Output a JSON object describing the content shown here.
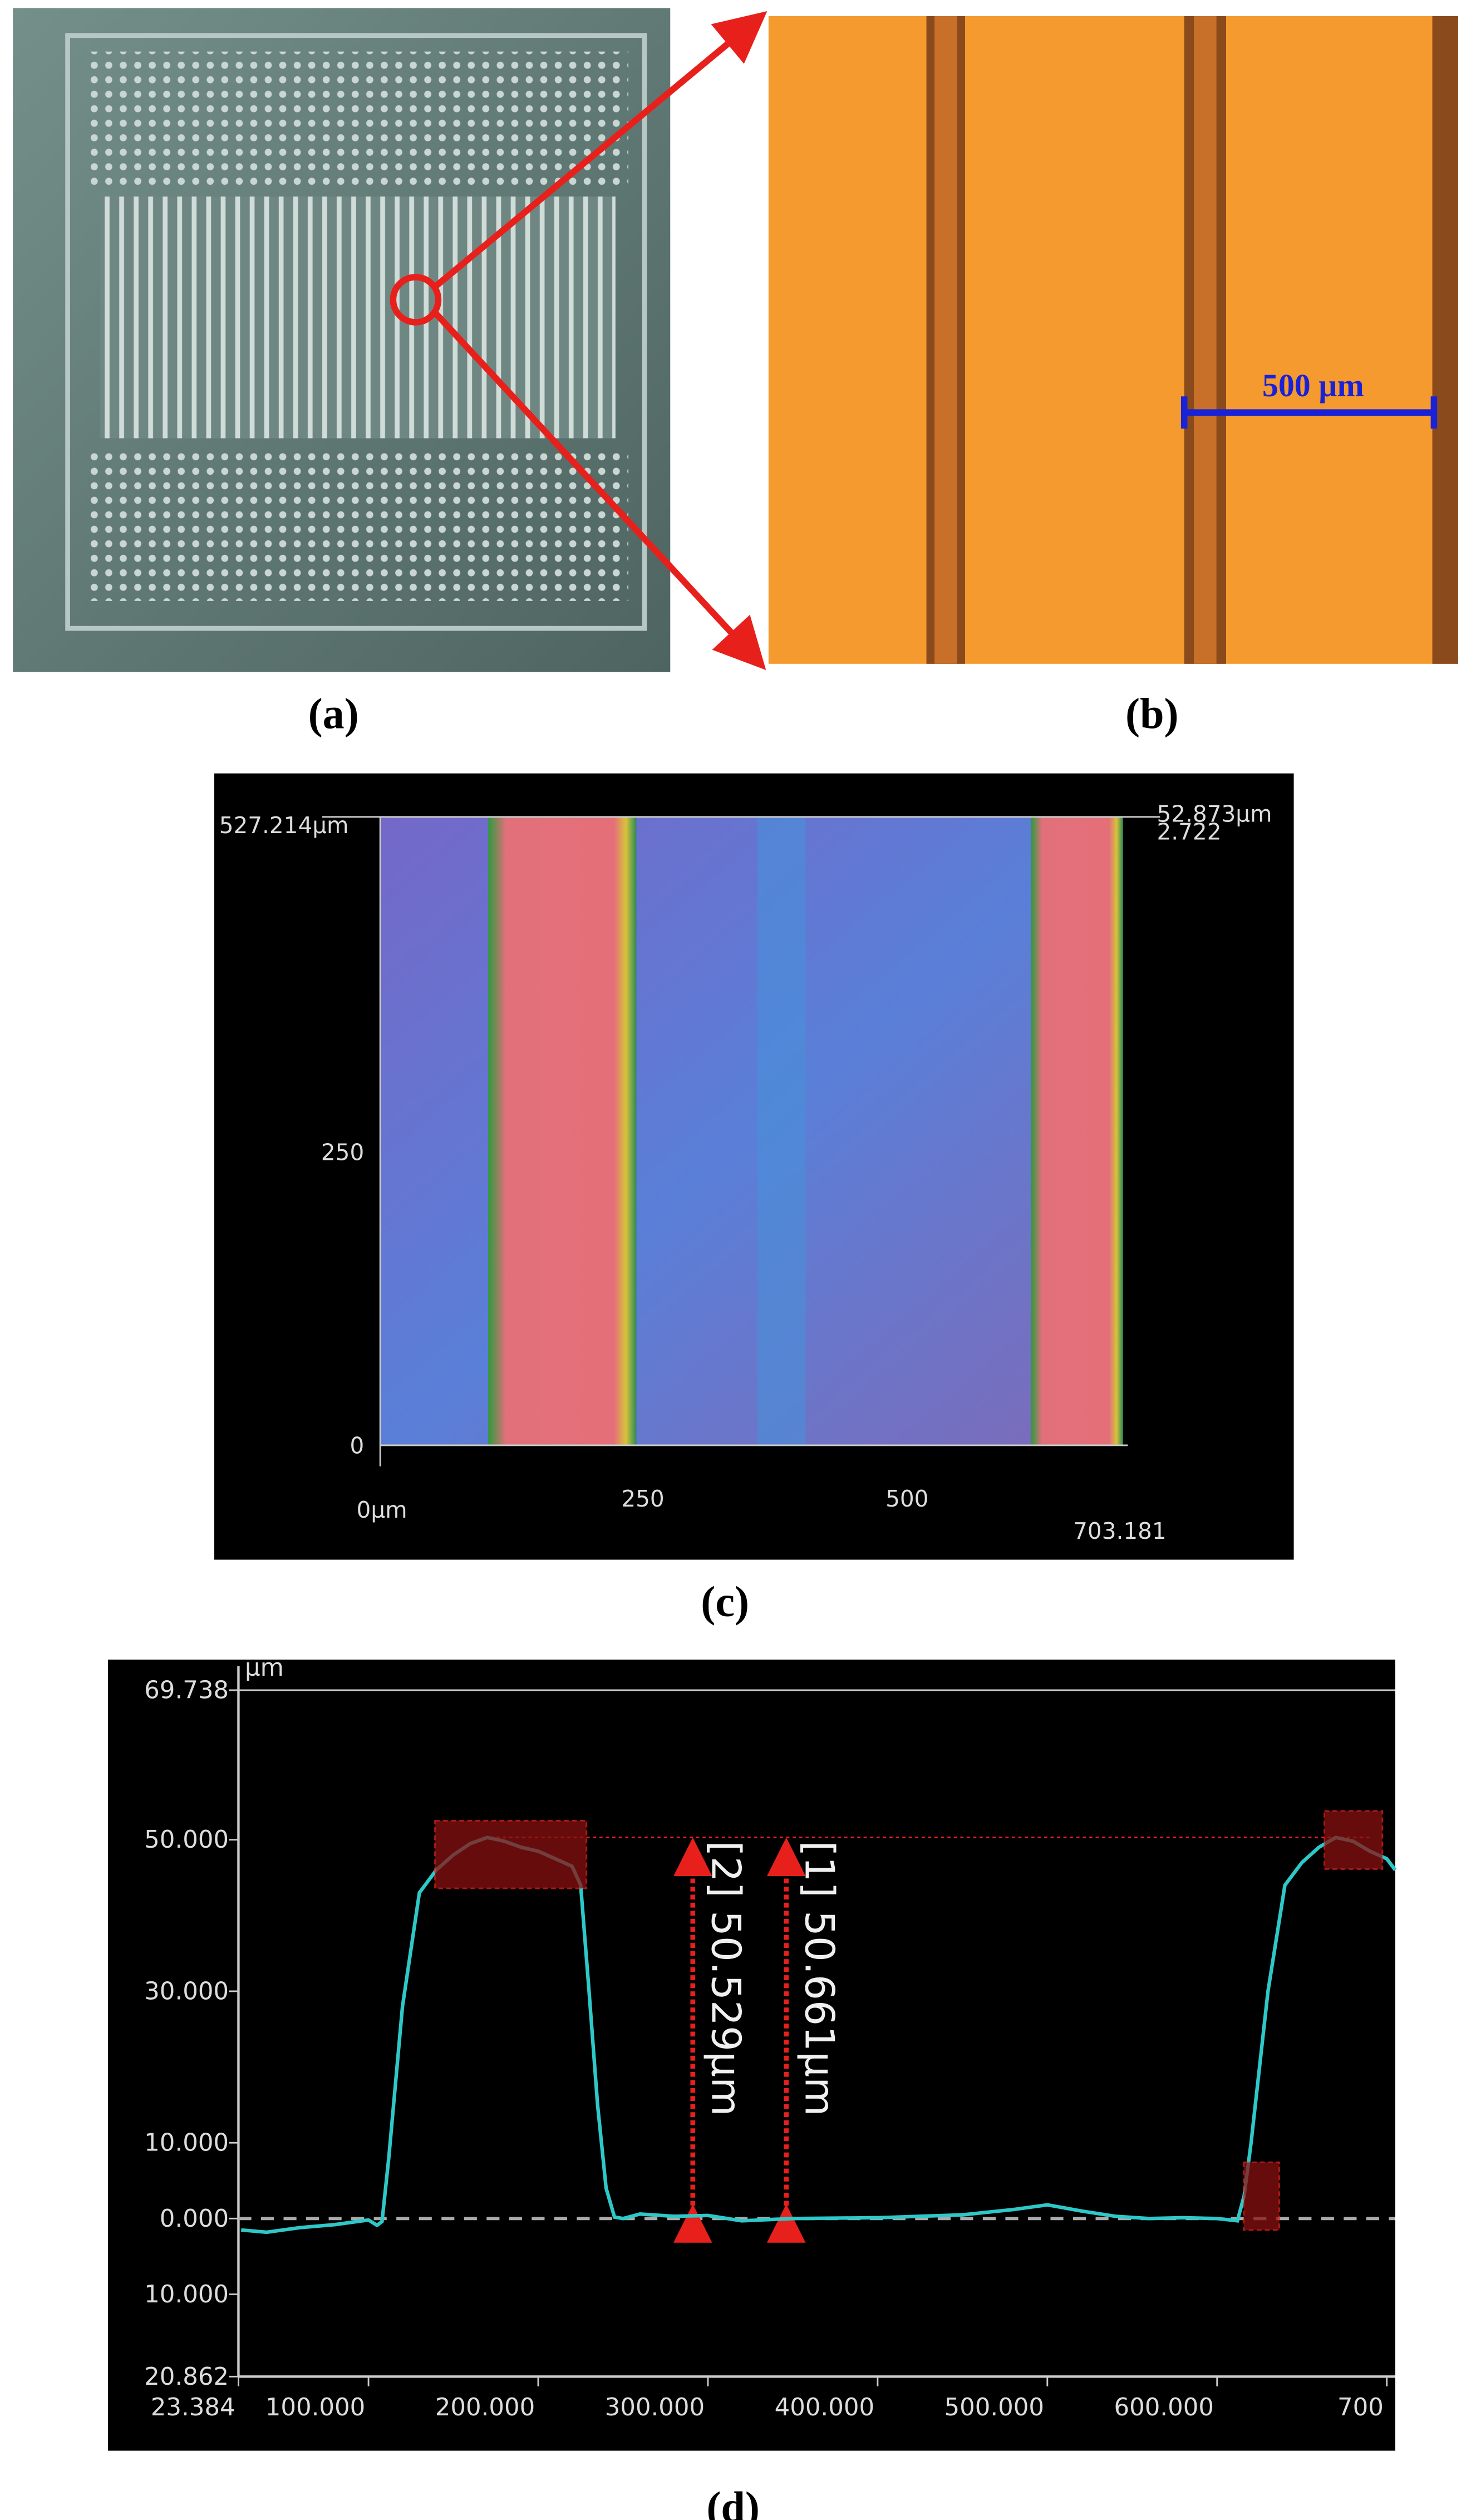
{
  "panels": [
    {
      "label": "(a)"
    },
    {
      "label": "(b)",
      "scale_bar": "500 µm"
    },
    {
      "label": "(c)",
      "axis_labels": {
        "y_top": "527.214µm",
        "z_top": "52.873µm",
        "z_bottom": "2.722",
        "y_mid": "250",
        "y_zero": "0",
        "x_zero": "0µm",
        "x_mid": "250",
        "x_500": "500",
        "x_end": "703.181"
      }
    }
  ],
  "chart_data": {
    "type": "line",
    "label": "(d)",
    "y_unit": "µm",
    "annotations": [
      "[2] 50.529µm",
      "[1] 50.661µm"
    ],
    "x": [
      25,
      40,
      60,
      80,
      100,
      105,
      108,
      112,
      120,
      130,
      140,
      150,
      160,
      170,
      180,
      190,
      200,
      210,
      220,
      225,
      230,
      235,
      240,
      245,
      250,
      260,
      280,
      300,
      320,
      350,
      400,
      450,
      480,
      500,
      520,
      540,
      560,
      580,
      600,
      608,
      612,
      616,
      620,
      630,
      640,
      650,
      660,
      670,
      680,
      690,
      700,
      705
    ],
    "values": [
      -1.5,
      -1.8,
      -1.2,
      -0.8,
      -0.2,
      -0.9,
      -0.4,
      8,
      28,
      43,
      46,
      48,
      49.5,
      50.3,
      49.8,
      49,
      48.5,
      47.5,
      46.5,
      44,
      30,
      15,
      4,
      0.2,
      0,
      0.6,
      0.3,
      0.4,
      -0.3,
      0,
      0.1,
      0.5,
      1.2,
      1.8,
      1,
      0.3,
      0,
      0.1,
      0,
      -0.2,
      -0.3,
      3,
      10,
      30,
      44,
      47,
      49,
      50.3,
      49.8,
      48.5,
      47.5,
      46
    ],
    "color": "#2ec8c8",
    "xlim": [
      23.384,
      705
    ],
    "xticks": [
      23.384,
      {
        "value": 100,
        "label": "100.000"
      },
      {
        "value": 200,
        "label": "200.000"
      },
      {
        "value": 300,
        "label": "300.000"
      },
      {
        "value": 400,
        "label": "400.000"
      },
      {
        "value": 500,
        "label": "500.000"
      },
      {
        "value": 600,
        "label": "600.000"
      },
      700
    ],
    "ylim": [
      -20.862,
      69.738
    ],
    "yticks": [
      {
        "value": -20.862,
        "label": "20.862"
      },
      {
        "value": -10,
        "label": "10.000"
      },
      {
        "value": 0,
        "label": "0.000"
      },
      {
        "value": 10,
        "label": "10.000"
      },
      {
        "value": 30,
        "label": "30.000"
      },
      {
        "value": 50,
        "label": "50.000"
      },
      69.738
    ],
    "zero_line": true
  }
}
